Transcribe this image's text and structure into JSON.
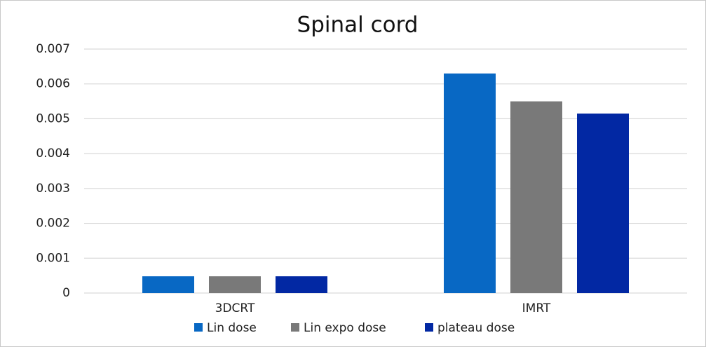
{
  "chart_data": {
    "type": "bar",
    "title": "Spinal cord",
    "categories": [
      "3DCRT",
      "IMRT"
    ],
    "series": [
      {
        "name": "Lin dose",
        "color": "#0868c4",
        "values": [
          0.00048,
          0.0063
        ]
      },
      {
        "name": "Lin expo dose",
        "color": "#797979",
        "values": [
          0.00048,
          0.0055
        ]
      },
      {
        "name": "plateau dose",
        "color": "#0228a3",
        "values": [
          0.00048,
          0.00515
        ]
      }
    ],
    "ylim": [
      0,
      0.007
    ],
    "yticks": [
      0,
      0.001,
      0.002,
      0.003,
      0.004,
      0.005,
      0.006,
      0.007
    ],
    "grid": true,
    "legend": "bottom"
  }
}
